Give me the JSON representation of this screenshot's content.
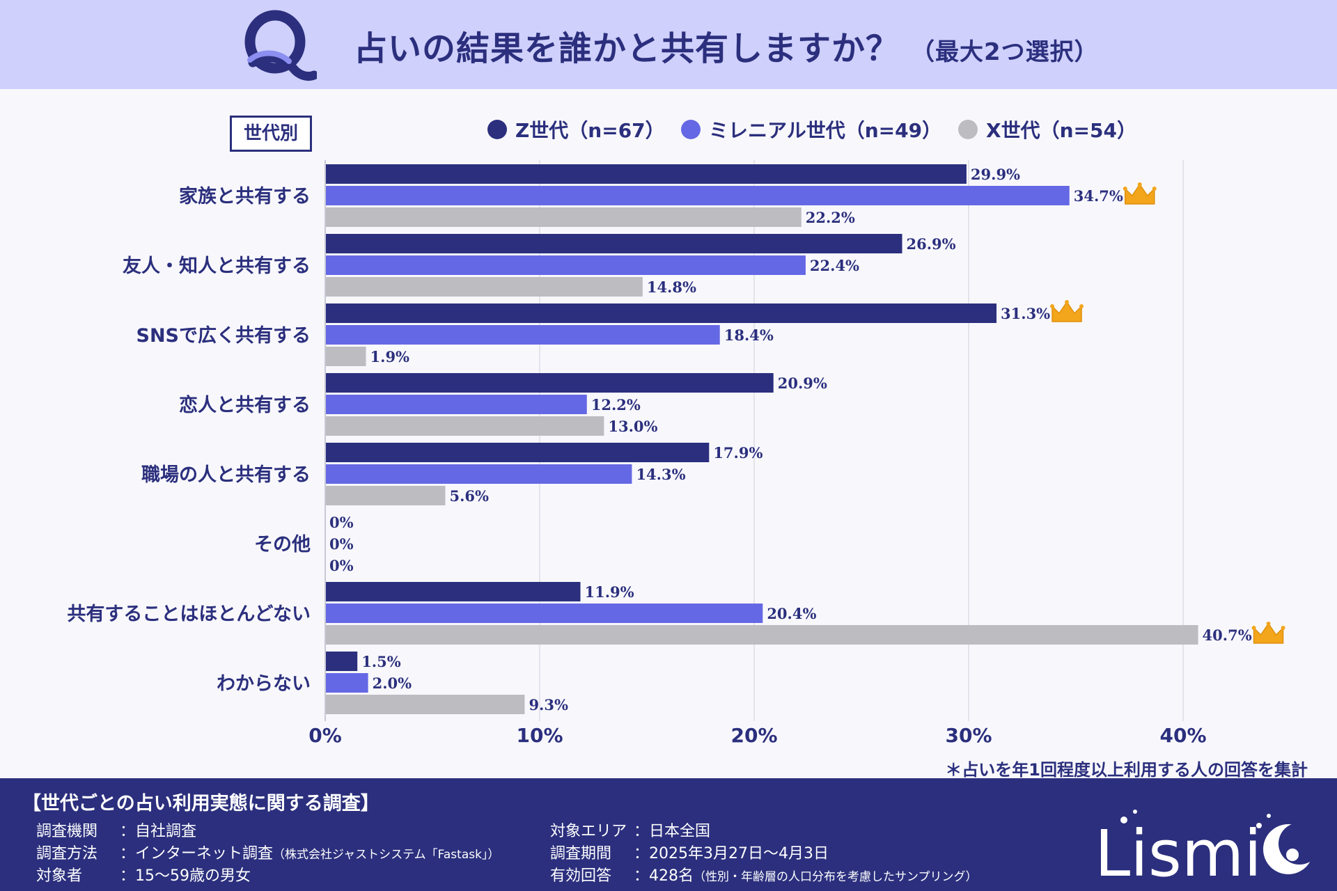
{
  "header": {
    "logo_letter": "Q",
    "title": "占いの結果を誰かと共有しますか？",
    "subtitle": "（最大2つ選択）"
  },
  "group_label": "世代別",
  "colors": {
    "z": "#2b2f7d",
    "millennial": "#6568e4",
    "x": "#bcbcc1",
    "crown": "#f3a51c"
  },
  "chart_data": {
    "type": "bar",
    "orientation": "horizontal",
    "categories": [
      "家族と共有する",
      "友人・知人と共有する",
      "SNSで広く共有する",
      "恋人と共有する",
      "職場の人と共有する",
      "その他",
      "共有することはほとんどない",
      "わからない"
    ],
    "series": [
      {
        "name": "Z世代（n=67）",
        "key": "z",
        "values": [
          29.9,
          26.9,
          31.3,
          20.9,
          17.9,
          0,
          11.9,
          1.5
        ],
        "labels": [
          "29.9%",
          "26.9%",
          "31.3%",
          "20.9%",
          "17.9%",
          "0%",
          "11.9%",
          "1.5%"
        ]
      },
      {
        "name": "ミレニアル世代（n=49）",
        "key": "millennial",
        "values": [
          34.7,
          22.4,
          18.4,
          12.2,
          14.3,
          0,
          20.4,
          2.0
        ],
        "labels": [
          "34.7%",
          "22.4%",
          "18.4%",
          "12.2%",
          "14.3%",
          "0%",
          "20.4%",
          "2.0%"
        ]
      },
      {
        "name": "X世代（n=54）",
        "key": "x",
        "values": [
          22.2,
          14.8,
          1.9,
          13.0,
          5.6,
          0,
          40.7,
          9.3
        ],
        "labels": [
          "22.2%",
          "14.8%",
          "1.9%",
          "13.0%",
          "5.6%",
          "0%",
          "40.7%",
          "9.3%"
        ]
      }
    ],
    "crowns": [
      {
        "series": "millennial",
        "category_index": 0
      },
      {
        "series": "z",
        "category_index": 2
      },
      {
        "series": "x",
        "category_index": 6
      }
    ],
    "xlim": [
      0,
      45
    ],
    "xticks": [
      0,
      10,
      20,
      30,
      40
    ],
    "xtick_labels": [
      "0%",
      "10%",
      "20%",
      "30%",
      "40%"
    ],
    "grid": true
  },
  "footnote": "＊占いを年1回程度以上利用する人の回答を集計",
  "footer": {
    "title": "【世代ごとの占い利用実態に関する調査】",
    "rows_left": [
      {
        "key": "調査機関",
        "value": "：自社調査",
        "note": ""
      },
      {
        "key": "調査方法",
        "value": "：インターネット調査",
        "note": "（株式会社ジャストシステム「Fastask」）"
      },
      {
        "key": "対象者",
        "value": "：15〜59歳の男女",
        "note": ""
      }
    ],
    "rows_right": [
      {
        "key": "対象エリア",
        "value": "：日本全国",
        "note": ""
      },
      {
        "key": "調査期間",
        "value": "：2025年3月27日〜4月3日",
        "note": ""
      },
      {
        "key": "有効回答",
        "value": "：428名",
        "note": "（性別・年齢層の人口分布を考慮したサンプリング）"
      }
    ],
    "brand": "Lismi"
  }
}
